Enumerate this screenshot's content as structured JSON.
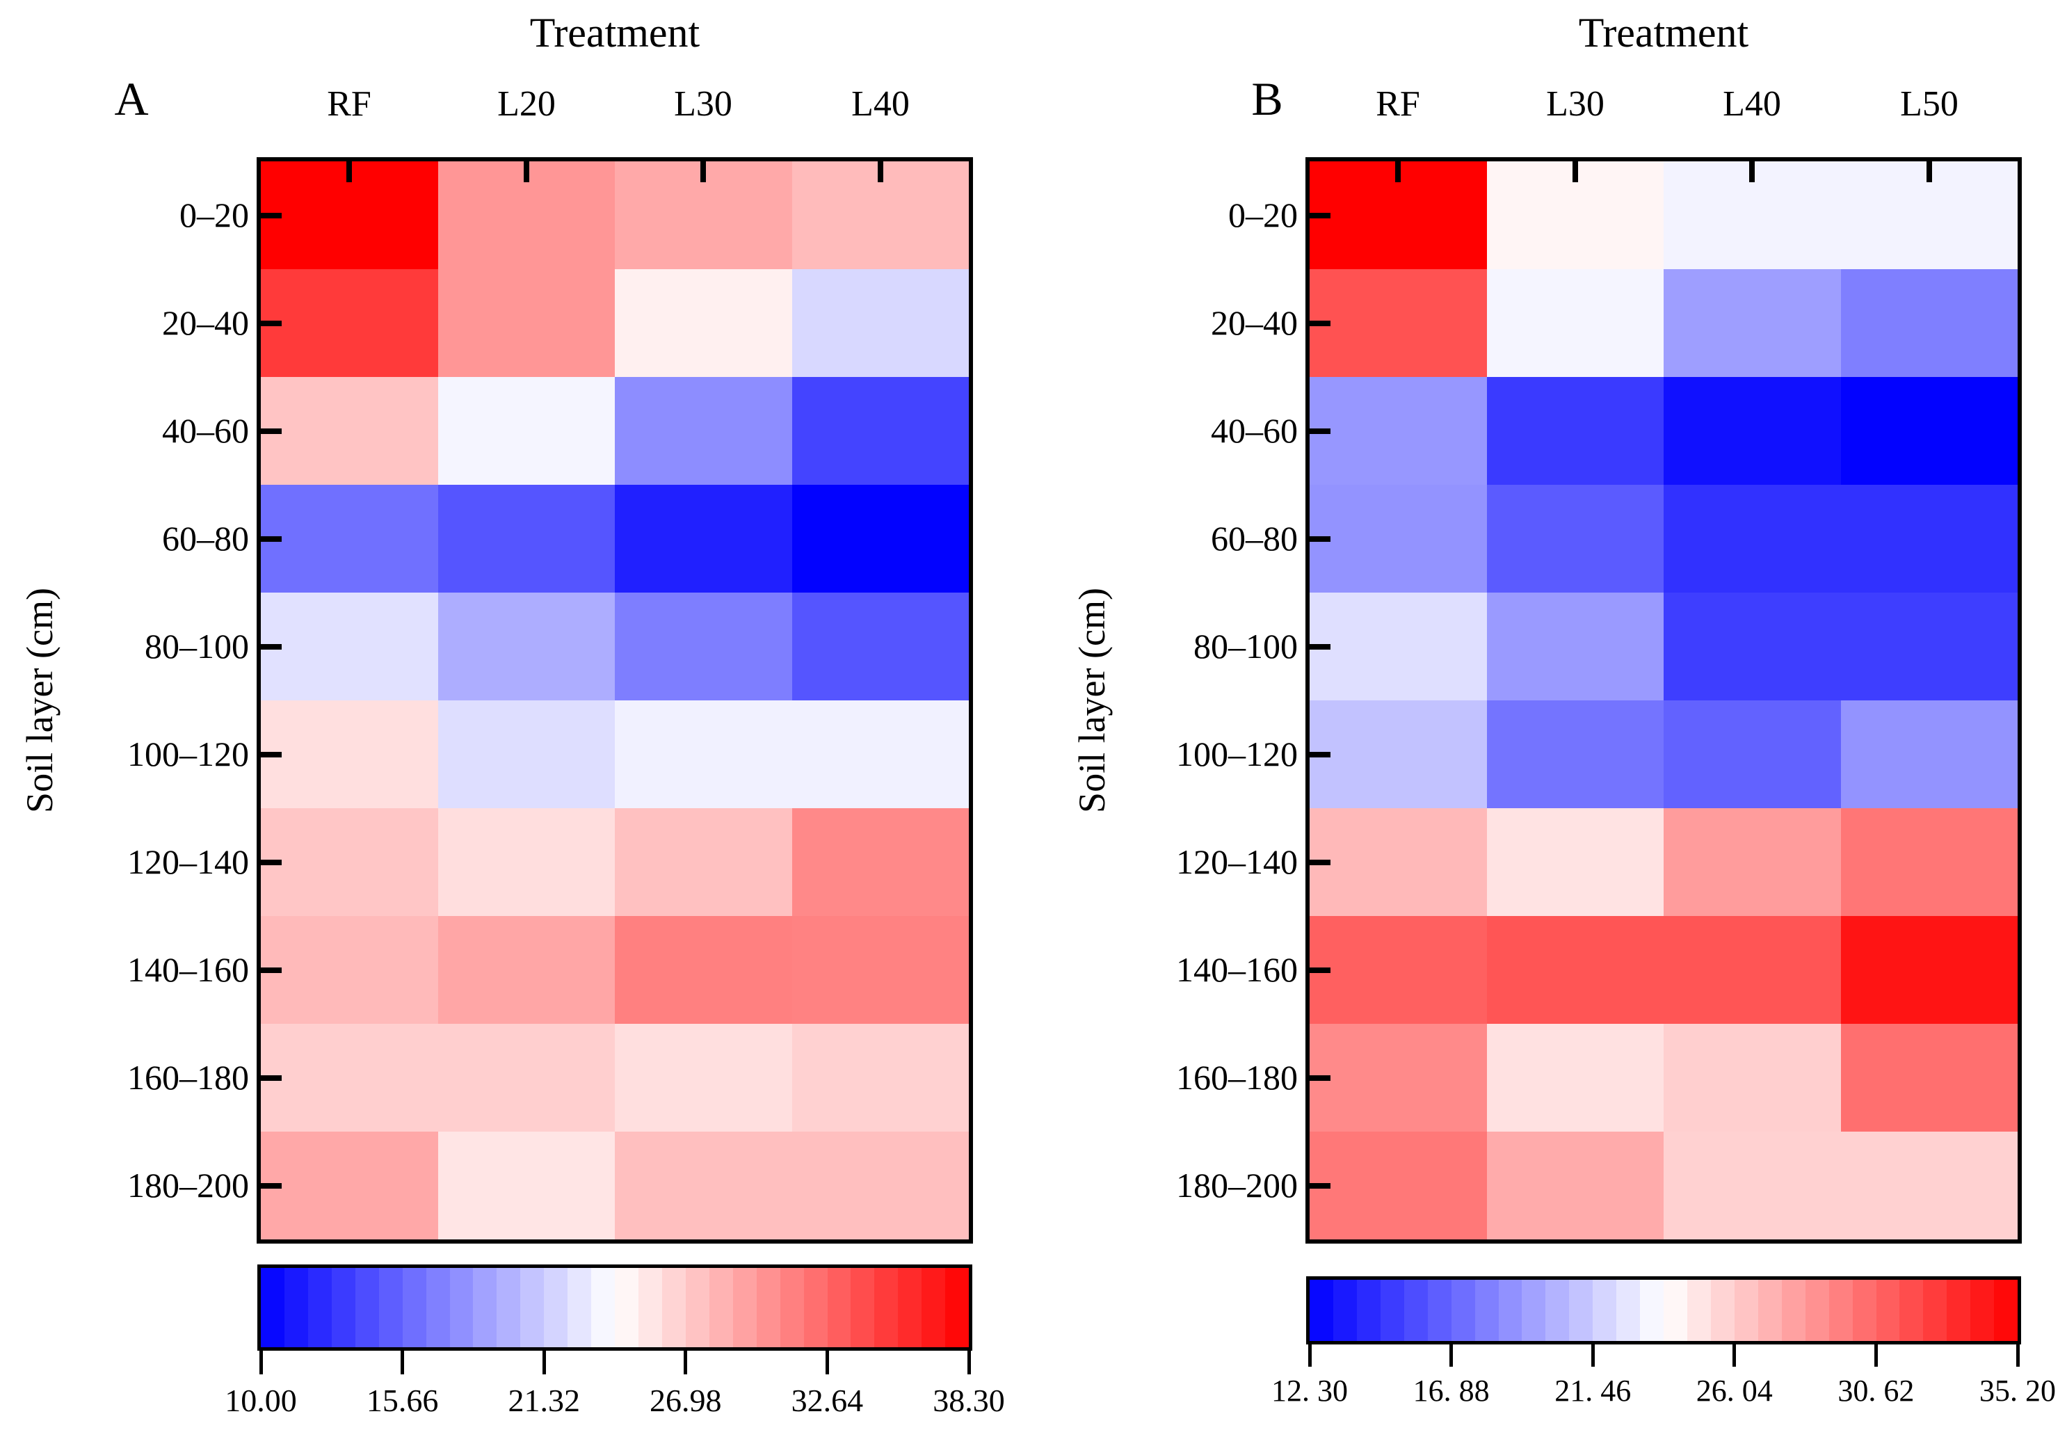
{
  "figure": {
    "background": "#ffffff",
    "colors": {
      "min_color": "#0000ff",
      "mid_color": "#ffffff",
      "max_color": "#ff0000",
      "axis": "#000000"
    }
  },
  "chart_data": [
    {
      "type": "heatmap",
      "panel_label": "A",
      "title": "Treatment",
      "ylabel": "Soil layer (cm)",
      "columns": [
        "RF",
        "L20",
        "L30",
        "L40"
      ],
      "rows": [
        "0–20",
        "20–40",
        "40–60",
        "60–80",
        "80–100",
        "100–120",
        "120–140",
        "140–160",
        "160–180",
        "180–200"
      ],
      "colormap": "blue-white-red",
      "vmin": 10.0,
      "vmax": 38.3,
      "colorbar_ticks": [
        "10.00",
        "15.66",
        "21.32",
        "26.98",
        "32.64",
        "38.30"
      ],
      "legend_position": "bottom",
      "grid": false,
      "values": [
        [
          38.3,
          30.0,
          28.9,
          27.9
        ],
        [
          35.1,
          30.0,
          25.0,
          22.0
        ],
        [
          27.4,
          23.6,
          17.8,
          13.8
        ],
        [
          16.2,
          14.7,
          11.8,
          10.1
        ],
        [
          22.5,
          19.6,
          17.0,
          14.7
        ],
        [
          25.9,
          22.3,
          23.4,
          23.4
        ],
        [
          27.3,
          26.0,
          27.6,
          30.7
        ],
        [
          28.0,
          29.1,
          31.2,
          31.1
        ],
        [
          26.8,
          26.8,
          25.9,
          26.7
        ],
        [
          29.0,
          25.6,
          27.7,
          27.7
        ]
      ]
    },
    {
      "type": "heatmap",
      "panel_label": "B",
      "title": "Treatment",
      "ylabel": "Soil layer (cm)",
      "columns": [
        "RF",
        "L30",
        "L40",
        "L50"
      ],
      "rows": [
        "0–20",
        "20–40",
        "40–60",
        "60–80",
        "80–100",
        "100–120",
        "120–140",
        "140–160",
        "160–180",
        "180–200"
      ],
      "colormap": "blue-white-red",
      "vmin": 12.3,
      "vmax": 35.2,
      "colorbar_ticks": [
        "12. 30",
        "16. 88",
        "21. 46",
        "26. 04",
        "30. 62",
        "35. 20"
      ],
      "legend_position": "bottom",
      "grid": false,
      "values": [
        [
          35.2,
          24.2,
          23.2,
          23.2
        ],
        [
          31.5,
          23.3,
          19.4,
          18.0
        ],
        [
          19.1,
          14.9,
          13.0,
          12.4
        ],
        [
          18.9,
          16.4,
          14.5,
          14.5
        ],
        [
          22.3,
          19.2,
          15.1,
          15.1
        ],
        [
          21.0,
          17.5,
          16.7,
          18.9
        ],
        [
          26.9,
          25.0,
          28.2,
          29.9
        ],
        [
          30.9,
          31.4,
          31.4,
          34.3
        ],
        [
          29.0,
          25.1,
          25.9,
          30.2
        ],
        [
          29.8,
          27.5,
          25.8,
          25.8
        ]
      ]
    }
  ]
}
